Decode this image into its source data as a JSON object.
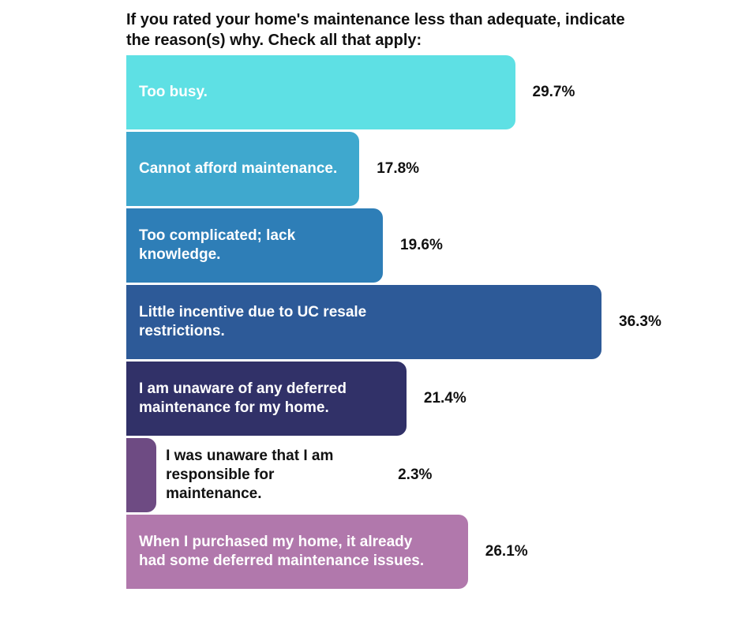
{
  "chart_data": {
    "type": "bar",
    "orientation": "horizontal",
    "title": "If you rated your home's maintenance less than adequate, indicate the reason(s) why. Check all that apply:",
    "unit": "%",
    "axis_max": 36.3,
    "grid": false,
    "legend_position": "none",
    "categories": [
      "Too busy.",
      "Cannot afford maintenance.",
      "Too complicated; lack knowledge.",
      "Little incentive due to UC resale restrictions.",
      "I am unaware of any deferred maintenance for my home.",
      "I was unaware that I am responsible for maintenance.",
      "When I purchased my home, it already had some deferred maintenance issues."
    ],
    "values": [
      29.7,
      17.8,
      19.6,
      36.3,
      21.4,
      2.3,
      26.1
    ],
    "value_labels": [
      "29.7%",
      "17.8%",
      "19.6%",
      "36.3%",
      "21.4%",
      "2.3%",
      "26.1%"
    ],
    "colors": [
      "#5EE0E4",
      "#3FA8CE",
      "#2E7EB7",
      "#2D5A98",
      "#313168",
      "#6E4B83",
      "#B178AC"
    ],
    "label_inside": [
      true,
      true,
      true,
      true,
      true,
      false,
      true
    ],
    "label_text_color_inside": "#FFFFFF",
    "label_text_color_outside": "#111111"
  }
}
